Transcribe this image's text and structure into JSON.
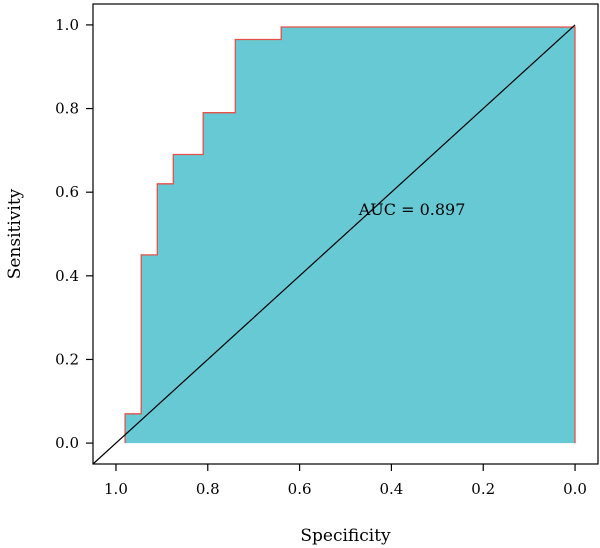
{
  "chart_data": {
    "type": "area",
    "title": "",
    "xlabel": "Specificity",
    "ylabel": "Sensitivity",
    "x_reversed": true,
    "xlim": [
      1.05,
      -0.05
    ],
    "ylim": [
      -0.05,
      1.05
    ],
    "x_ticks": [
      1.0,
      0.8,
      0.6,
      0.4,
      0.2,
      0.0
    ],
    "x_tick_labels": [
      "1.0",
      "0.8",
      "0.6",
      "0.4",
      "0.2",
      "0.0"
    ],
    "y_ticks": [
      0.0,
      0.2,
      0.4,
      0.6,
      0.8,
      1.0
    ],
    "y_tick_labels": [
      "0.0",
      "0.2",
      "0.4",
      "0.6",
      "0.8",
      "1.0"
    ],
    "grid": false,
    "series": [
      {
        "specificity": [
          0.98,
          0.98,
          0.945,
          0.945,
          0.91,
          0.91,
          0.875,
          0.875,
          0.81,
          0.81,
          0.74,
          0.74,
          0.64,
          0.64,
          0.0,
          0.0
        ],
        "sensitivity": [
          0.0,
          0.07,
          0.07,
          0.45,
          0.45,
          0.62,
          0.62,
          0.69,
          0.69,
          0.79,
          0.79,
          0.965,
          0.965,
          0.995,
          0.995,
          0.0
        ]
      }
    ],
    "reference_line": {
      "specificity": [
        1.05,
        0.0
      ],
      "sensitivity": [
        -0.05,
        1.0
      ]
    },
    "annotation": {
      "text": "AUC = 0.897",
      "specificity": 0.355,
      "sensitivity": 0.545
    },
    "colors": {
      "fill": "#66c9d4",
      "curve": "#e8504a",
      "reference": "#000000",
      "axis": "#000000"
    }
  }
}
